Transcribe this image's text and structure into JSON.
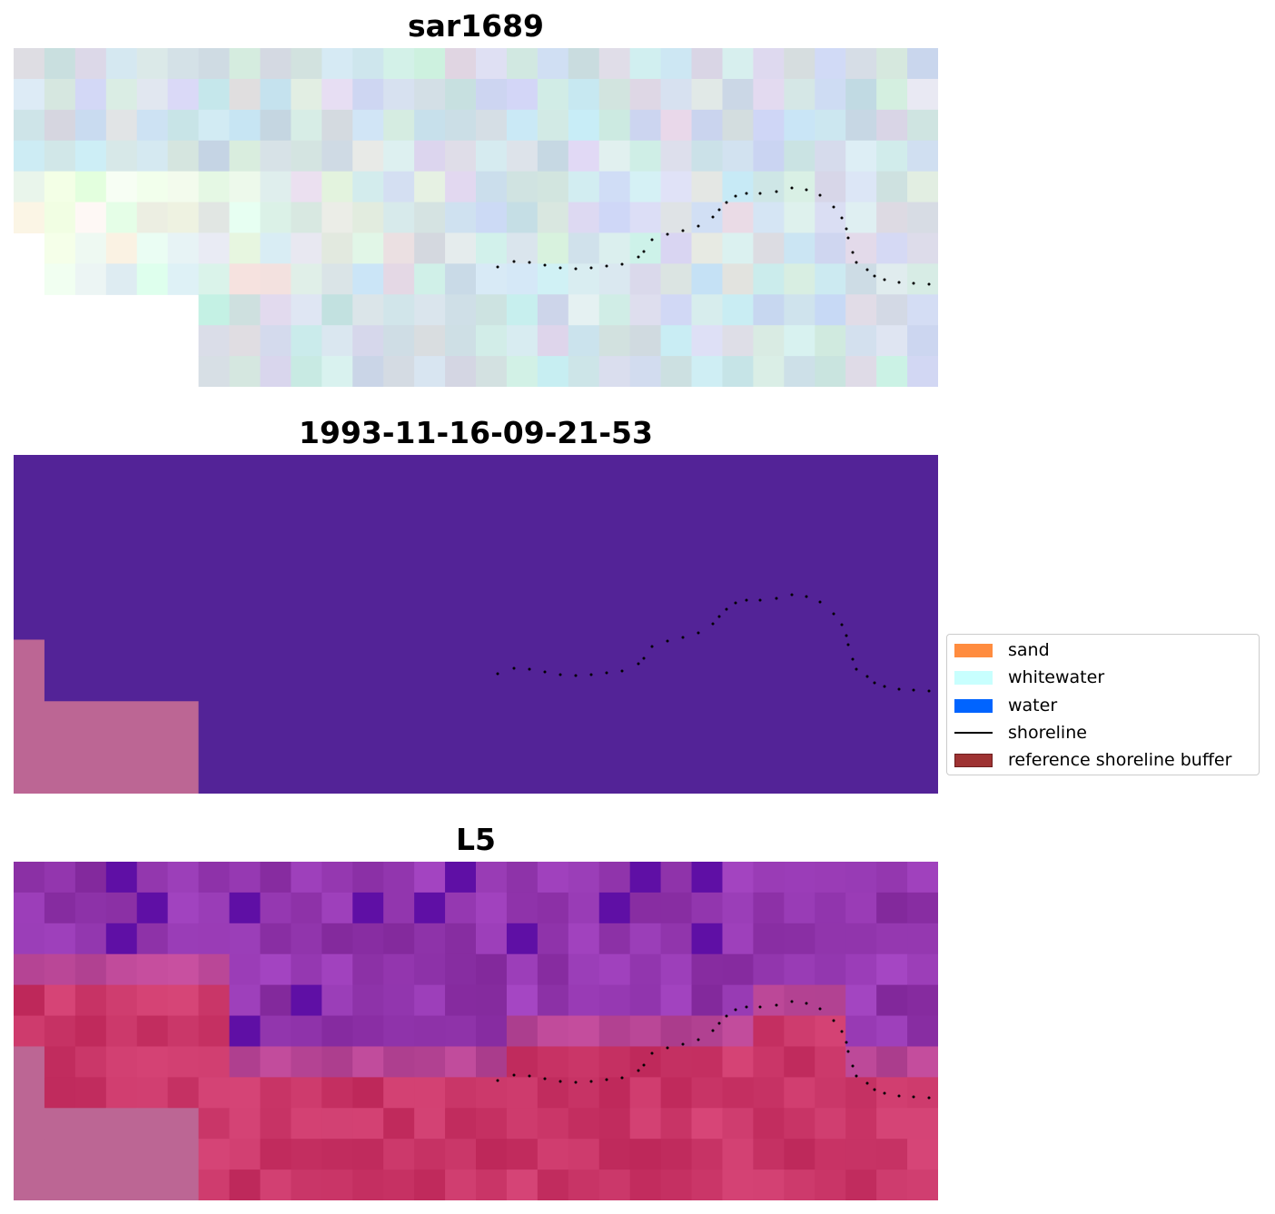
{
  "panels": [
    {
      "id": "sar",
      "title": "sar1689"
    },
    {
      "id": "classified",
      "title": "1993-11-16-09-21-53"
    },
    {
      "id": "l5",
      "title": "L5"
    }
  ],
  "legend": {
    "items": [
      {
        "label": "sand",
        "color": "#ff8c3f",
        "kind": "patch"
      },
      {
        "label": "whitewater",
        "color": "#c8fffe",
        "kind": "patch"
      },
      {
        "label": "water",
        "color": "#0064ff",
        "kind": "patch"
      },
      {
        "label": "shoreline",
        "color": "#000000",
        "kind": "line"
      },
      {
        "label": "reference shoreline buffer",
        "color": "#9e3232",
        "edge": "#6e1e1e",
        "kind": "patch"
      }
    ]
  },
  "colors": {
    "classified_background": "#532397",
    "nodata_mask": "#bc6694",
    "shoreline_dots": "#000000"
  }
}
